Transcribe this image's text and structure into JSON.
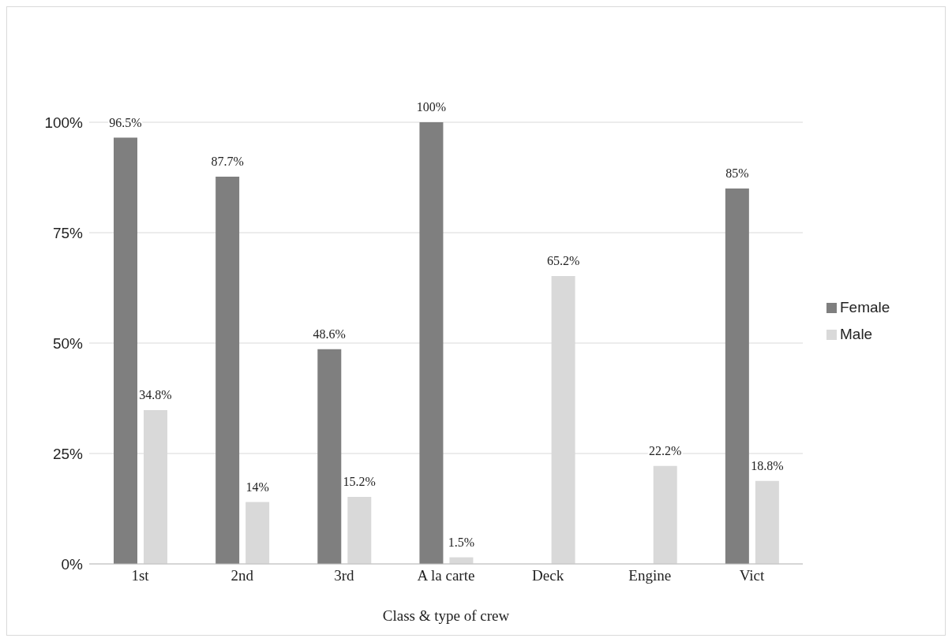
{
  "chart_data": {
    "type": "bar",
    "xlabel": "Class & type of crew",
    "categories": [
      "1st",
      "2nd",
      "3rd",
      "A la carte",
      "Deck",
      "Engine",
      "Vict"
    ],
    "series": [
      {
        "name": "Female",
        "color": "#7f7f7f",
        "values": [
          96.5,
          87.7,
          48.6,
          100,
          null,
          null,
          85
        ],
        "value_labels": [
          "96.5%",
          "87.7%",
          "48.6%",
          "100%",
          null,
          null,
          "85%"
        ]
      },
      {
        "name": "Male",
        "color": "#d9d9d9",
        "values": [
          34.8,
          14,
          15.2,
          1.5,
          65.2,
          22.2,
          18.8
        ],
        "value_labels": [
          "34.8%",
          "14%",
          "15.2%",
          "1.5%",
          "65.2%",
          "22.2%",
          "18.8%"
        ]
      }
    ],
    "ylim": [
      0,
      100
    ],
    "yticks": [
      {
        "value": 0,
        "label": "0%"
      },
      {
        "value": 25,
        "label": "25%"
      },
      {
        "value": 50,
        "label": "50%"
      },
      {
        "value": 75,
        "label": "75%"
      },
      {
        "value": 100,
        "label": "100%"
      }
    ],
    "grid": "y",
    "legend": "right"
  }
}
